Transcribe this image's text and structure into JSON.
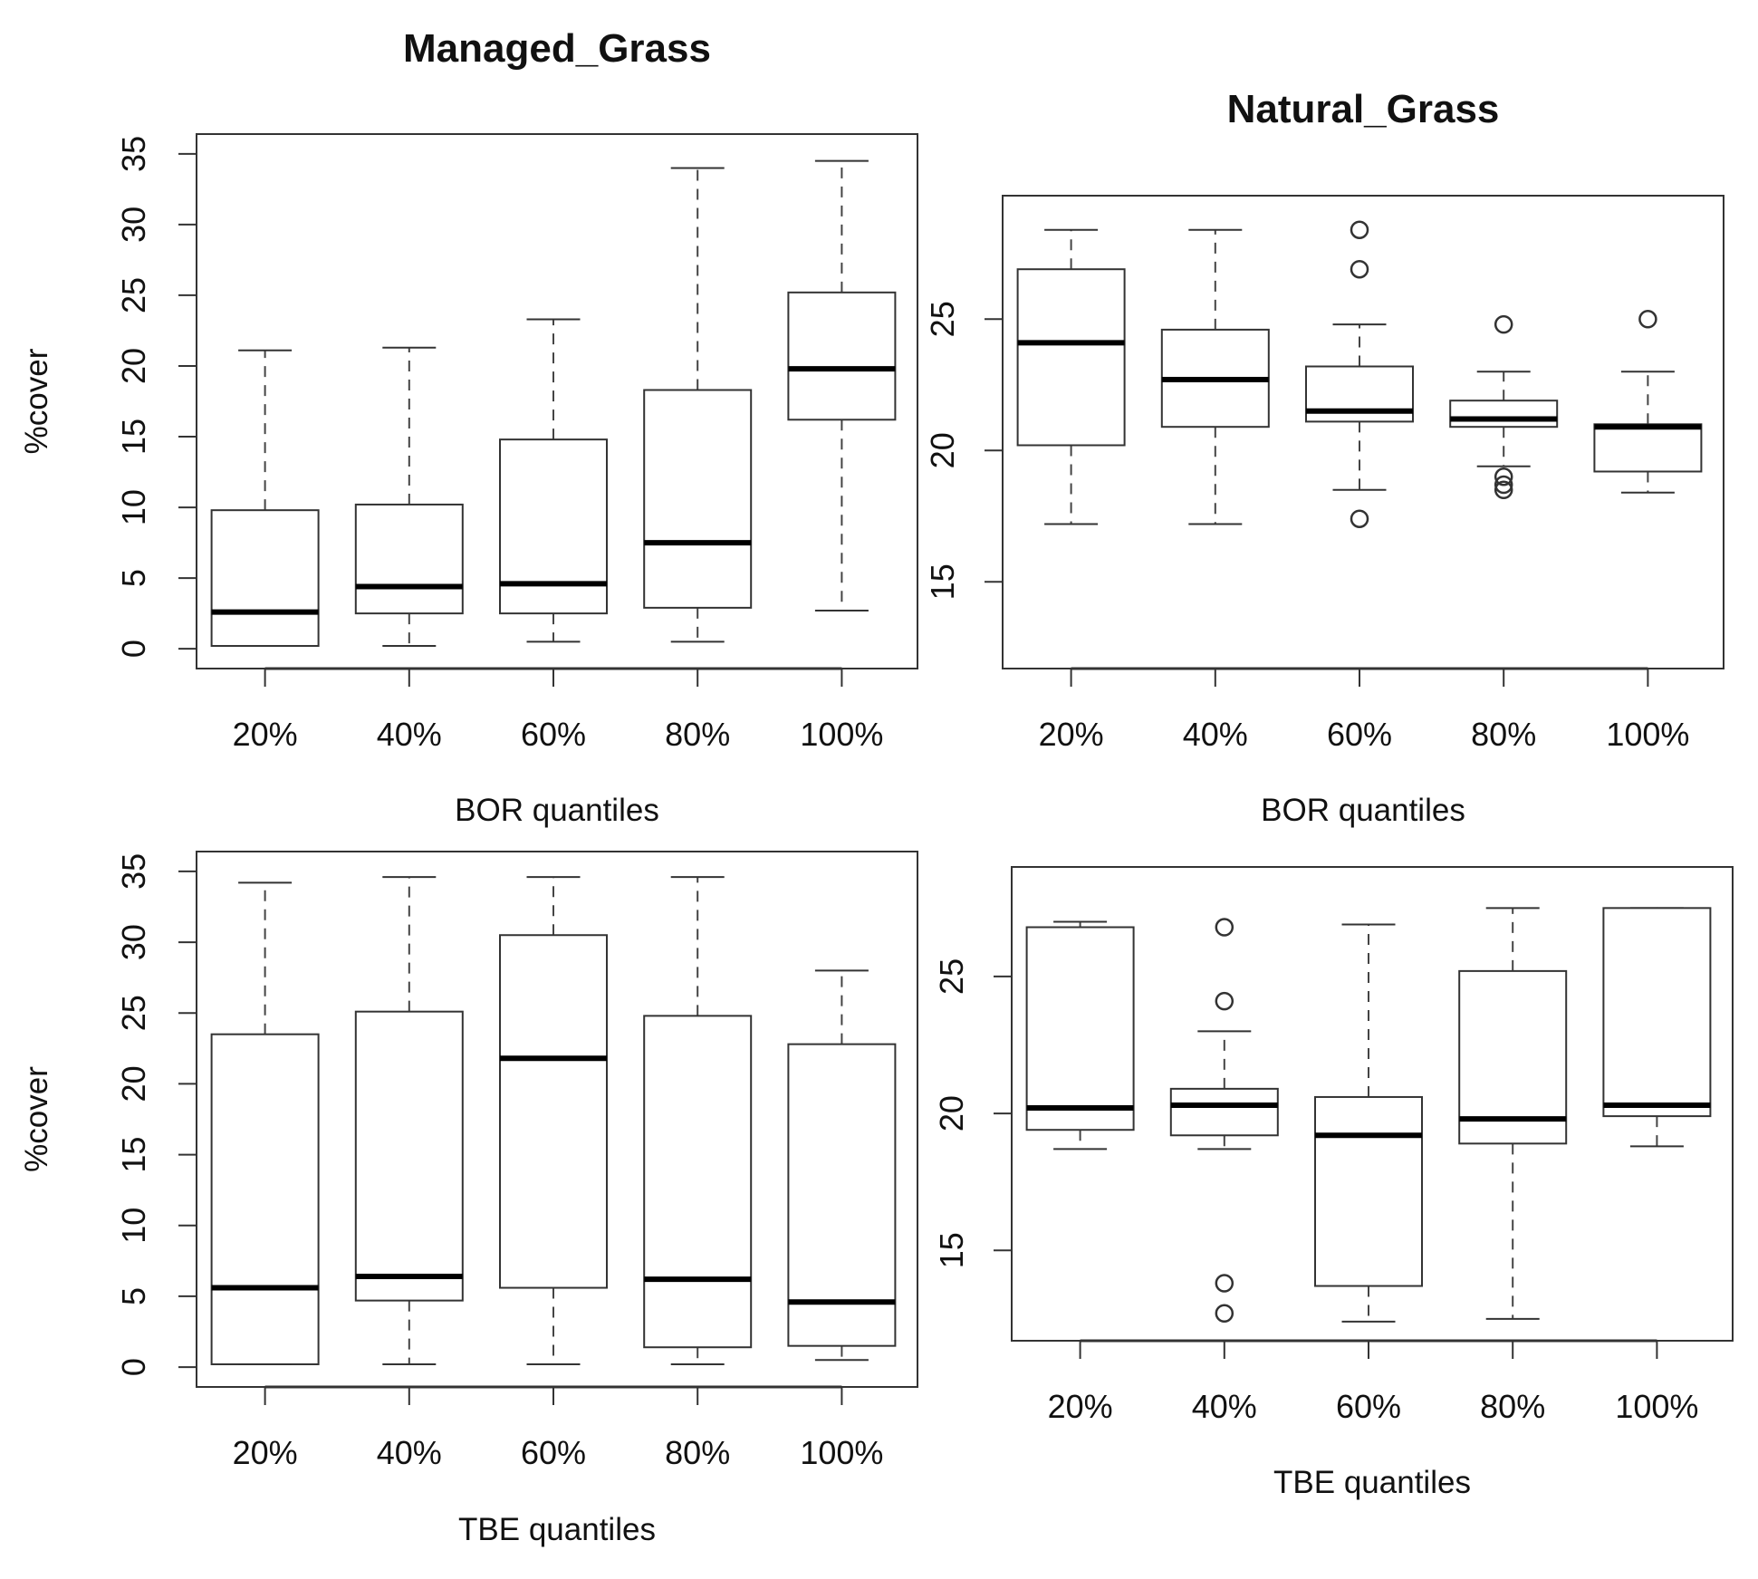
{
  "chart_data": [
    {
      "type": "boxplot",
      "panel": "top-left",
      "title": "Managed_Grass",
      "xlabel": "BOR quantiles",
      "ylabel": "%cover",
      "ylim": [
        -1.4,
        36.4
      ],
      "yticks": [
        0,
        5,
        10,
        15,
        20,
        25,
        30,
        35
      ],
      "categories": [
        "20%",
        "40%",
        "60%",
        "80%",
        "100%"
      ],
      "boxes": [
        {
          "whisker_low": 0.2,
          "q1": 0.2,
          "median": 2.6,
          "q3": 9.8,
          "whisker_high": 21.1,
          "outliers": []
        },
        {
          "whisker_low": 0.2,
          "q1": 2.5,
          "median": 4.4,
          "q3": 10.2,
          "whisker_high": 21.3,
          "outliers": []
        },
        {
          "whisker_low": 0.5,
          "q1": 2.5,
          "median": 4.6,
          "q3": 14.8,
          "whisker_high": 23.3,
          "outliers": []
        },
        {
          "whisker_low": 0.5,
          "q1": 2.9,
          "median": 7.5,
          "q3": 18.3,
          "whisker_high": 34.0,
          "outliers": []
        },
        {
          "whisker_low": 2.7,
          "q1": 16.2,
          "median": 19.8,
          "q3": 25.2,
          "whisker_high": 34.5,
          "outliers": []
        }
      ]
    },
    {
      "type": "boxplot",
      "panel": "top-right",
      "title": "Natural_Grass",
      "xlabel": "BOR quantiles",
      "ylabel": "",
      "ylim": [
        11.7,
        29.7
      ],
      "yticks": [
        15,
        20,
        25
      ],
      "categories": [
        "20%",
        "40%",
        "60%",
        "80%",
        "100%"
      ],
      "boxes": [
        {
          "whisker_low": 17.2,
          "q1": 20.2,
          "median": 24.1,
          "q3": 26.9,
          "whisker_high": 28.4,
          "outliers": []
        },
        {
          "whisker_low": 17.2,
          "q1": 20.9,
          "median": 22.7,
          "q3": 24.6,
          "whisker_high": 28.4,
          "outliers": []
        },
        {
          "whisker_low": 18.5,
          "q1": 21.1,
          "median": 21.5,
          "q3": 23.2,
          "whisker_high": 24.8,
          "outliers": [
            28.4,
            26.9,
            17.4
          ]
        },
        {
          "whisker_low": 19.4,
          "q1": 20.9,
          "median": 21.2,
          "q3": 21.9,
          "whisker_high": 23.0,
          "outliers": [
            24.8,
            19.0,
            18.7,
            18.5
          ]
        },
        {
          "whisker_low": 18.4,
          "q1": 19.2,
          "median": 20.9,
          "q3": 21.0,
          "whisker_high": 23.0,
          "outliers": [
            25.0
          ]
        }
      ]
    },
    {
      "type": "boxplot",
      "panel": "bottom-left",
      "title": "",
      "xlabel": "TBE quantiles",
      "ylabel": "%cover",
      "ylim": [
        -1.4,
        36.4
      ],
      "yticks": [
        0,
        5,
        10,
        15,
        20,
        25,
        30,
        35
      ],
      "categories": [
        "20%",
        "40%",
        "60%",
        "80%",
        "100%"
      ],
      "boxes": [
        {
          "whisker_low": 0.2,
          "q1": 0.2,
          "median": 5.6,
          "q3": 23.5,
          "whisker_high": 34.2,
          "outliers": []
        },
        {
          "whisker_low": 0.2,
          "q1": 4.7,
          "median": 6.4,
          "q3": 25.1,
          "whisker_high": 34.6,
          "outliers": []
        },
        {
          "whisker_low": 0.2,
          "q1": 5.6,
          "median": 21.8,
          "q3": 30.5,
          "whisker_high": 34.6,
          "outliers": []
        },
        {
          "whisker_low": 0.2,
          "q1": 1.4,
          "median": 6.2,
          "q3": 24.8,
          "whisker_high": 34.6,
          "outliers": []
        },
        {
          "whisker_low": 0.5,
          "q1": 1.5,
          "median": 4.6,
          "q3": 22.8,
          "whisker_high": 28.0,
          "outliers": []
        }
      ]
    },
    {
      "type": "boxplot",
      "panel": "bottom-right",
      "title": "",
      "xlabel": "TBE quantiles",
      "ylabel": "",
      "ylim": [
        11.7,
        29.0
      ],
      "yticks": [
        15,
        20,
        25
      ],
      "categories": [
        "20%",
        "40%",
        "60%",
        "80%",
        "100%"
      ],
      "boxes": [
        {
          "whisker_low": 18.7,
          "q1": 19.4,
          "median": 20.2,
          "q3": 26.8,
          "whisker_high": 27.0,
          "outliers": []
        },
        {
          "whisker_low": 18.7,
          "q1": 19.2,
          "median": 20.3,
          "q3": 20.9,
          "whisker_high": 23.0,
          "outliers": [
            26.8,
            24.1,
            13.8,
            12.7
          ]
        },
        {
          "whisker_low": 12.4,
          "q1": 13.7,
          "median": 19.2,
          "q3": 20.6,
          "whisker_high": 26.9,
          "outliers": []
        },
        {
          "whisker_low": 12.5,
          "q1": 18.9,
          "median": 19.8,
          "q3": 25.2,
          "whisker_high": 27.5,
          "outliers": []
        },
        {
          "whisker_low": 18.8,
          "q1": 19.9,
          "median": 20.3,
          "q3": 27.5,
          "whisker_high": 27.5,
          "outliers": []
        }
      ]
    }
  ]
}
